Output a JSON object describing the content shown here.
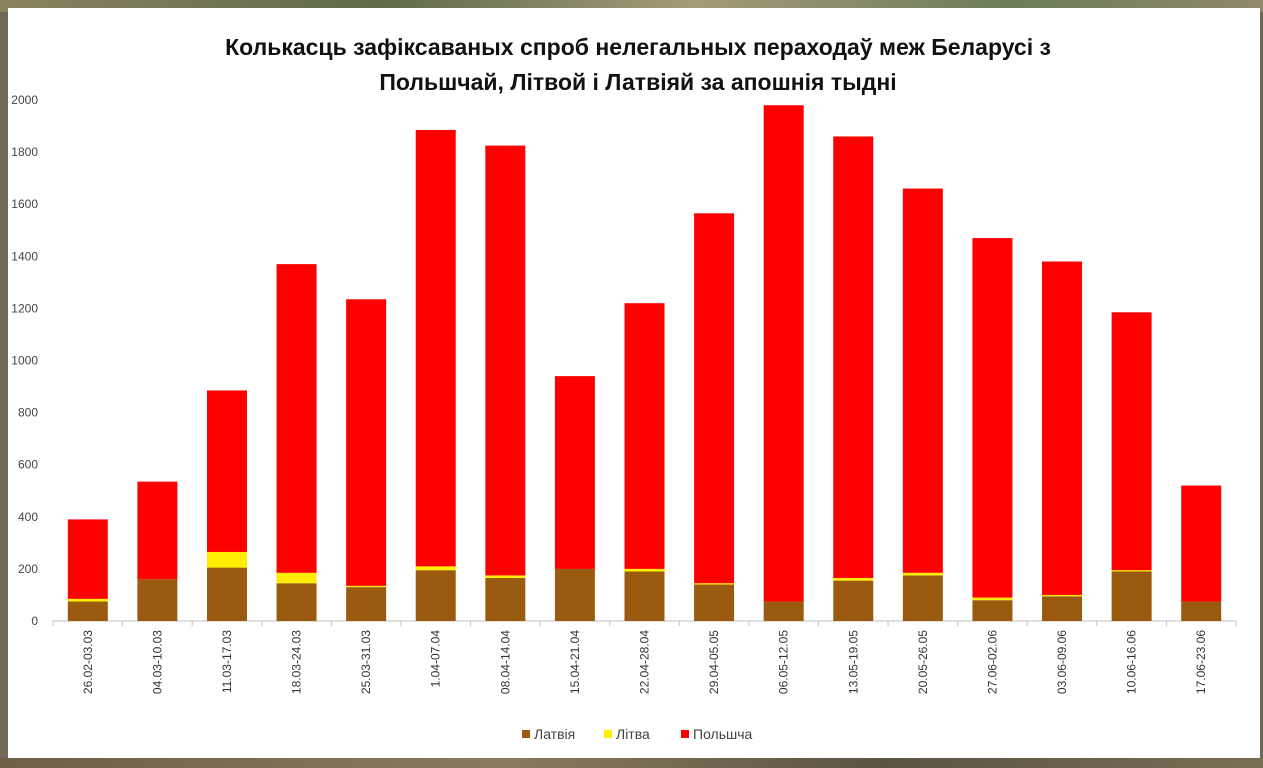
{
  "chart_data": {
    "type": "bar",
    "stacked": true,
    "title_line1": "Колькасць зафіксаваных спроб нелегальных пераходаў меж Беларусі з",
    "title_line2": "Польшчай, Літвой і Латвіяй за апошнія тыдні",
    "categories": [
      "26.02-03.03",
      "04.03-10.03",
      "11.03-17.03",
      "18.03-24.03",
      "25.03-31.03",
      "1.04-07.04",
      "08.04-14.04",
      "15.04-21.04",
      "22.04-28.04",
      "29.04-05.05",
      "06.05-12.05",
      "13.05-19.05",
      "20.05-26.05",
      "27.06-02.06",
      "03.06-09.06",
      "10.06-16.06",
      "17.06-23.06"
    ],
    "series": [
      {
        "name": "Латвія",
        "color": "#9a5a10",
        "values": [
          75,
          160,
          205,
          145,
          130,
          195,
          165,
          200,
          190,
          140,
          75,
          155,
          175,
          80,
          95,
          190,
          75
        ]
      },
      {
        "name": "Літва",
        "color": "#ffee00",
        "values": [
          10,
          0,
          60,
          40,
          5,
          15,
          10,
          0,
          10,
          5,
          0,
          10,
          10,
          10,
          5,
          5,
          0
        ]
      },
      {
        "name": "Польшча",
        "color": "#ff0000",
        "values": [
          305,
          375,
          620,
          1185,
          1100,
          1675,
          1650,
          740,
          1020,
          1420,
          1905,
          1695,
          1475,
          1380,
          1280,
          990,
          445
        ]
      }
    ],
    "ylim": [
      0,
      2000
    ],
    "yticks": [
      0,
      200,
      400,
      600,
      800,
      1000,
      1200,
      1400,
      1600,
      1800,
      2000
    ],
    "grid": false,
    "legend": "bottom"
  }
}
